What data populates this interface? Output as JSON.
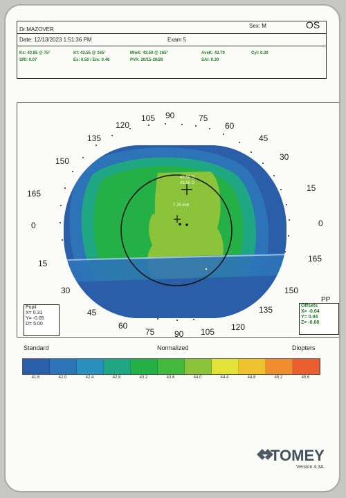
{
  "header": {
    "doctor": "Dr.MAZOVER",
    "sex": "Sex: M",
    "eye": "OS",
    "date": "Date: 12/13/2023 1:51:36 PM",
    "exam": "Exam 5"
  },
  "indices": {
    "ks": "Ks: 43.85 @ 75°",
    "srI": "SRI: 0.07",
    "kf": "Kf: 43.55 @ 165°",
    "ecc": "Es: 0.50 / Em: 0.46",
    "minK": "MinK: 43.50 @ 165°",
    "pva": "PVA: 20/15-20/20",
    "avek": "AveK: 43.70",
    "sai": "SAI: 0.30",
    "cyl": "Cyl: 0.30"
  },
  "map": {
    "angle_labels": [
      "0",
      "15",
      "30",
      "45",
      "60",
      "75",
      "90",
      "105",
      "120",
      "135",
      "150",
      "165",
      "0",
      "15",
      "30",
      "45",
      "60",
      "75",
      "90",
      "105",
      "120",
      "135",
      "150",
      "165"
    ],
    "center_text_1": "43.50 D",
    "center_text_2": "43.55 D",
    "mid_text": "7.75 mm",
    "pp": "PP"
  },
  "pupil": {
    "title": "Pupil",
    "x": "X=  0.31",
    "y": "Y= -0.05",
    "d": "D=  5.00"
  },
  "offsets": {
    "title": "Offsets",
    "x": "X= -0.04",
    "y": "Y= 0.04",
    "z": "Z= -0.08"
  },
  "legend": {
    "left": "Standard",
    "center": "Normalized",
    "right": "Diopters",
    "values": [
      "41.6",
      "42.0",
      "42.4",
      "42.8",
      "43.2",
      "43.6",
      "44.0",
      "44.4",
      "44.8",
      "45.2",
      "45.6"
    ],
    "colors": [
      "#2b5ea8",
      "#2d73b8",
      "#2a8fbd",
      "#1fa784",
      "#24b046",
      "#42b93d",
      "#8bc43a",
      "#e2e238",
      "#f1c22f",
      "#ef8d2f",
      "#eb5f2f"
    ]
  },
  "brand": {
    "name": "TOMEY",
    "version": "Version 4.3A"
  }
}
